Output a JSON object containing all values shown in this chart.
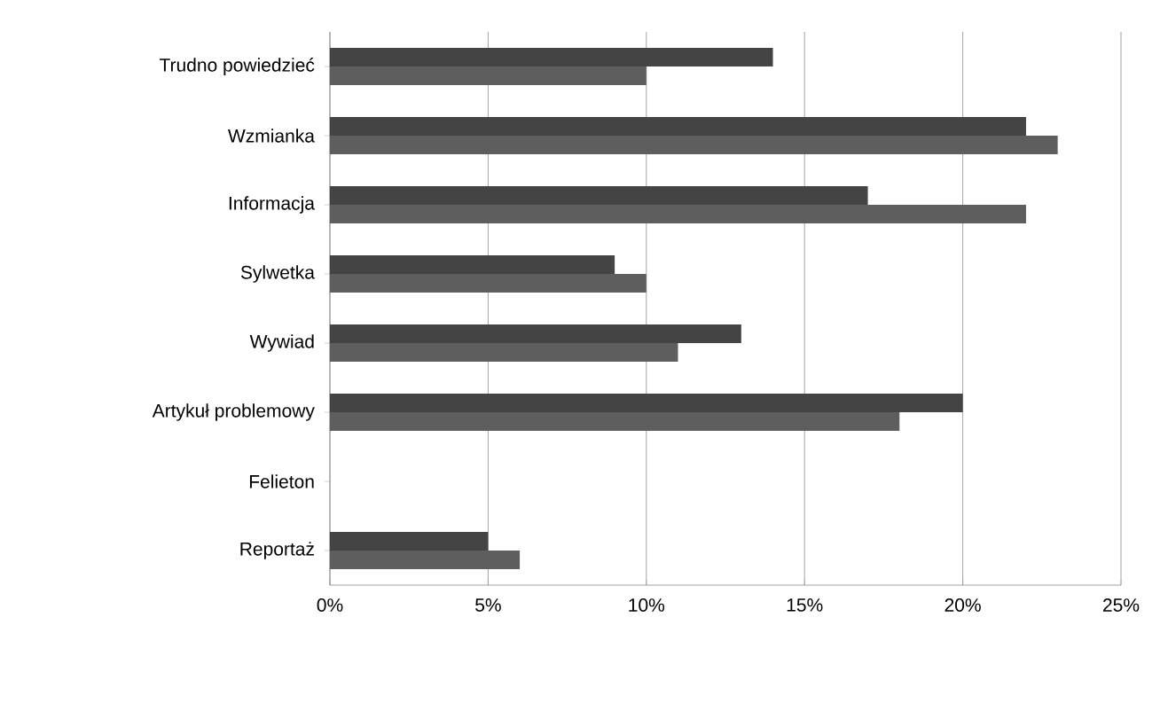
{
  "chart_data": {
    "type": "bar",
    "orientation": "horizontal",
    "categories": [
      "Trudno powiedzieć",
      "Wzmianka",
      "Informacja",
      "Sylwetka",
      "Wywiad",
      "Artykuł problemowy",
      "Felieton",
      "Reportaż"
    ],
    "series": [
      {
        "color": "#444444",
        "values": [
          14,
          22,
          17,
          9,
          13,
          20,
          0,
          5
        ]
      },
      {
        "color": "#5e5e5e",
        "values": [
          10,
          23,
          22,
          10,
          11,
          18,
          0,
          6
        ]
      }
    ],
    "xlim": [
      0,
      25
    ],
    "xticks": [
      {
        "value": 0,
        "label": "0%"
      },
      {
        "value": 5,
        "label": "5%"
      },
      {
        "value": 10,
        "label": "10%"
      },
      {
        "value": 15,
        "label": "15%"
      },
      {
        "value": 20,
        "label": "20%"
      },
      {
        "value": 25,
        "label": "25%"
      }
    ],
    "grid": "x"
  }
}
